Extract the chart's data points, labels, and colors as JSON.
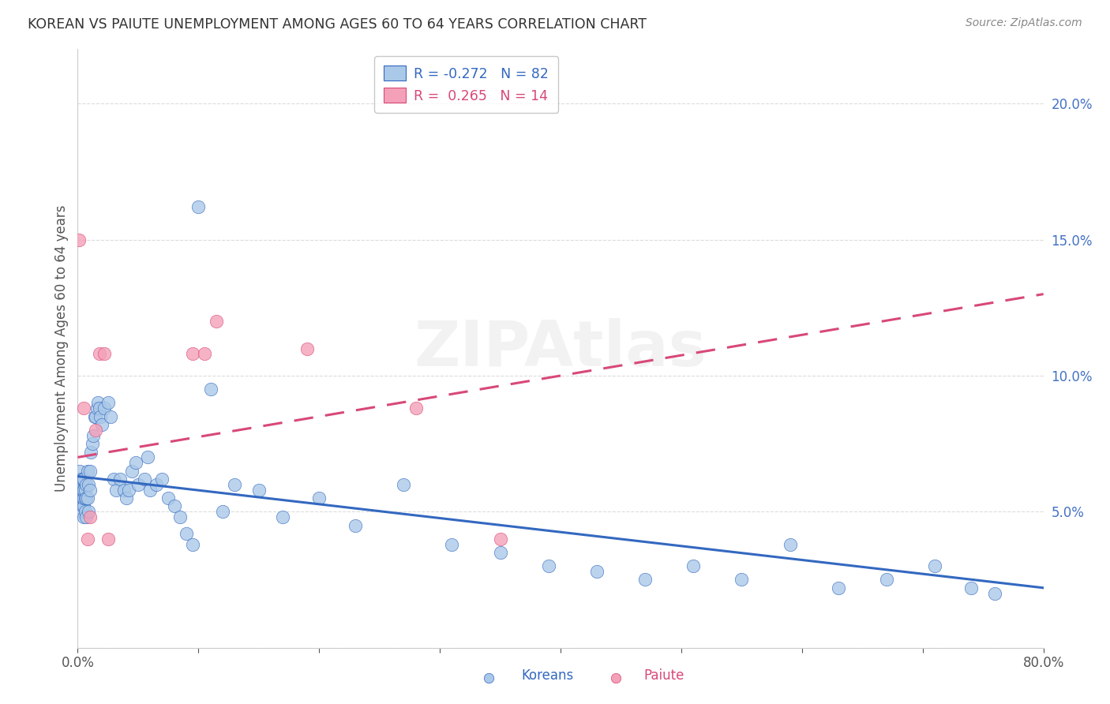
{
  "title": "KOREAN VS PAIUTE UNEMPLOYMENT AMONG AGES 60 TO 64 YEARS CORRELATION CHART",
  "source": "Source: ZipAtlas.com",
  "ylabel": "Unemployment Among Ages 60 to 64 years",
  "xlim": [
    0.0,
    0.8
  ],
  "ylim": [
    0.0,
    0.22
  ],
  "xticks": [
    0.0,
    0.1,
    0.2,
    0.3,
    0.4,
    0.5,
    0.6,
    0.7,
    0.8
  ],
  "xticklabels": [
    "0.0%",
    "",
    "",
    "",
    "",
    "",
    "",
    "",
    "80.0%"
  ],
  "yticks": [
    0.0,
    0.05,
    0.1,
    0.15,
    0.2
  ],
  "yticklabels_right": [
    "",
    "5.0%",
    "10.0%",
    "15.0%",
    "20.0%"
  ],
  "korean_R": -0.272,
  "korean_N": 82,
  "paiute_R": 0.265,
  "paiute_N": 14,
  "korean_color": "#aac8e8",
  "paiute_color": "#f4a0b8",
  "korean_line_color": "#3368c0",
  "paiute_line_color": "#d84878",
  "background_color": "#ffffff",
  "watermark": "ZIPAtlas",
  "legend_korean": "Koreans",
  "legend_paiute": "Paiute",
  "korean_x": [
    0.001,
    0.002,
    0.002,
    0.003,
    0.003,
    0.003,
    0.003,
    0.004,
    0.004,
    0.004,
    0.004,
    0.005,
    0.005,
    0.005,
    0.005,
    0.005,
    0.006,
    0.006,
    0.006,
    0.007,
    0.007,
    0.007,
    0.008,
    0.008,
    0.009,
    0.009,
    0.01,
    0.01,
    0.011,
    0.012,
    0.013,
    0.014,
    0.015,
    0.016,
    0.017,
    0.018,
    0.019,
    0.02,
    0.022,
    0.025,
    0.027,
    0.03,
    0.032,
    0.035,
    0.038,
    0.04,
    0.042,
    0.045,
    0.048,
    0.05,
    0.055,
    0.058,
    0.06,
    0.065,
    0.07,
    0.075,
    0.08,
    0.085,
    0.09,
    0.095,
    0.1,
    0.11,
    0.12,
    0.13,
    0.15,
    0.17,
    0.2,
    0.23,
    0.27,
    0.31,
    0.35,
    0.39,
    0.43,
    0.47,
    0.51,
    0.55,
    0.59,
    0.63,
    0.67,
    0.71,
    0.74,
    0.76
  ],
  "korean_y": [
    0.06,
    0.055,
    0.065,
    0.05,
    0.058,
    0.06,
    0.062,
    0.052,
    0.055,
    0.058,
    0.062,
    0.048,
    0.052,
    0.055,
    0.058,
    0.062,
    0.05,
    0.055,
    0.058,
    0.048,
    0.055,
    0.06,
    0.055,
    0.065,
    0.05,
    0.06,
    0.058,
    0.065,
    0.072,
    0.075,
    0.078,
    0.085,
    0.085,
    0.088,
    0.09,
    0.088,
    0.085,
    0.082,
    0.088,
    0.09,
    0.085,
    0.062,
    0.058,
    0.062,
    0.058,
    0.055,
    0.058,
    0.065,
    0.068,
    0.06,
    0.062,
    0.07,
    0.058,
    0.06,
    0.062,
    0.055,
    0.052,
    0.048,
    0.042,
    0.038,
    0.162,
    0.095,
    0.05,
    0.06,
    0.058,
    0.048,
    0.055,
    0.045,
    0.06,
    0.038,
    0.035,
    0.03,
    0.028,
    0.025,
    0.03,
    0.025,
    0.038,
    0.022,
    0.025,
    0.03,
    0.022,
    0.02
  ],
  "paiute_x": [
    0.001,
    0.005,
    0.008,
    0.01,
    0.015,
    0.018,
    0.022,
    0.025,
    0.095,
    0.105,
    0.115,
    0.19,
    0.28,
    0.35
  ],
  "paiute_y": [
    0.15,
    0.088,
    0.04,
    0.048,
    0.08,
    0.108,
    0.108,
    0.04,
    0.108,
    0.108,
    0.12,
    0.11,
    0.088,
    0.04
  ],
  "korean_trend_x0": 0.0,
  "korean_trend_y0": 0.063,
  "korean_trend_x1": 0.8,
  "korean_trend_y1": 0.022,
  "paiute_trend_x0": 0.0,
  "paiute_trend_y0": 0.07,
  "paiute_trend_x1": 0.8,
  "paiute_trend_y1": 0.13
}
